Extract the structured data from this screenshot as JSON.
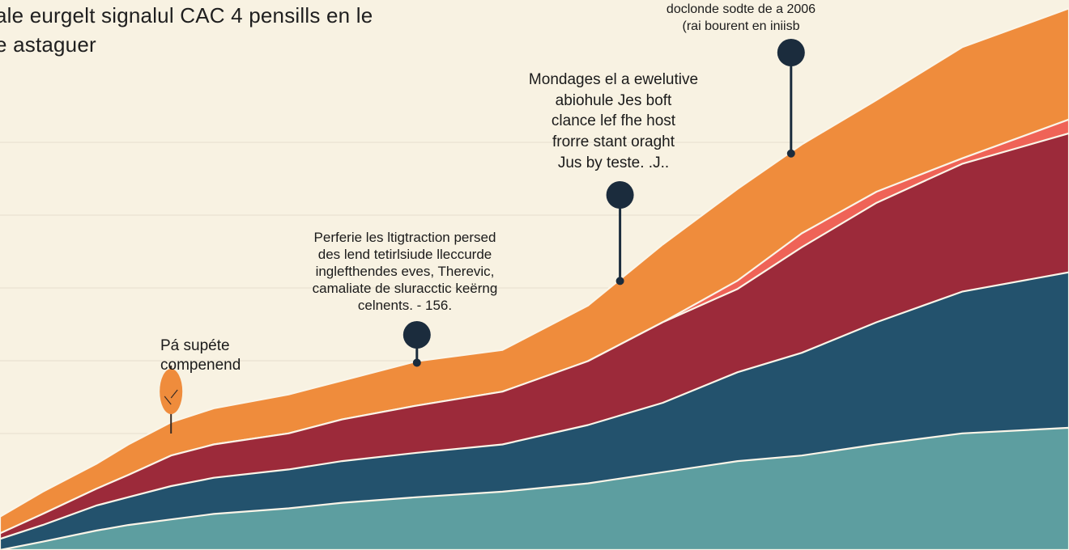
{
  "colors": {
    "background": "#f8f2e2",
    "gridline": "#e6dfce",
    "orange": "#ef8c3c",
    "coral": "#ef6357",
    "crimson": "#9c2a3a",
    "navy": "#23526d",
    "teal": "#5d9ea0",
    "pin": "#1b2c3d",
    "tree": "#ef8c3c"
  },
  "chart_data": {
    "type": "area",
    "stacked": true,
    "title_lines": [
      "ale eurgelt signalul CAC 4 pensills en le",
      "e astaguer"
    ],
    "xlabel": "",
    "ylabel": "",
    "grid": true,
    "legend": "none",
    "x": [
      0,
      4,
      9,
      12,
      16,
      20,
      27,
      32,
      39,
      47,
      55,
      62,
      69,
      75,
      82,
      90,
      100
    ],
    "series": [
      {
        "values": [
          0,
          3,
          7,
          9,
          11,
          13,
          15,
          17,
          19,
          21,
          24,
          28,
          32,
          34,
          38,
          42,
          44
        ]
      },
      {
        "values": [
          4,
          6,
          9,
          10,
          12,
          13,
          14,
          15,
          16,
          17,
          21,
          25,
          32,
          37,
          44,
          51,
          56
        ]
      },
      {
        "values": [
          2,
          4,
          6,
          8,
          11,
          12,
          13,
          15,
          17,
          19,
          23,
          29,
          30,
          38,
          43,
          46,
          50
        ]
      },
      {
        "values": [
          0,
          0,
          0,
          0,
          0,
          0,
          0,
          0,
          0,
          0,
          0,
          0,
          3,
          5,
          4,
          2,
          5
        ]
      },
      {
        "values": [
          6,
          8,
          9,
          11,
          12,
          13,
          14,
          14,
          16,
          15,
          20,
          28,
          33,
          32,
          33,
          40,
          40
        ]
      }
    ],
    "ylim": [
      0,
      198
    ],
    "annotations": [
      {
        "id": "a1",
        "lines": [
          "Pá supéte",
          "compenend"
        ],
        "x": 16,
        "marker": "tree"
      },
      {
        "id": "a2",
        "lines": [
          "Perferie les ltigtraction persed",
          "des lend tetirlsiude lleccurde",
          "inglefthendes eves, Therevic,",
          "camaliate de sluracctic keërng",
          "celnents. - 156."
        ],
        "x": 39,
        "marker": "pin"
      },
      {
        "id": "a3",
        "lines": [
          "Mondages el a ewelutive",
          "abiohule Jes boft",
          "clance lef fhe host",
          "frorre stant oraght",
          "Jus by teste. .J.."
        ],
        "x": 58,
        "marker": "pin"
      },
      {
        "id": "a4",
        "lines": [
          "doclonde sodte de a 2006",
          "(rai bourent en iniisb"
        ],
        "x": 74,
        "marker": "pin"
      }
    ]
  }
}
